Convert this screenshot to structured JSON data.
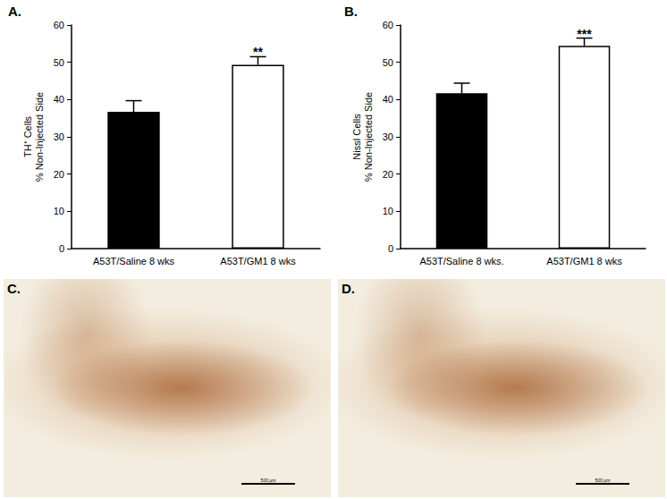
{
  "chart_data": [
    {
      "type": "bar",
      "title": "A.",
      "y_label": "TH⁺ Cells\n% Non-Injected Side",
      "categories": [
        "A53T/Saline 8 wks",
        "A53T/GM1 8 wks"
      ],
      "values": [
        36.7,
        49.3
      ],
      "errors": [
        3.0,
        2.2
      ],
      "colors": [
        "#000000",
        "#ffffff"
      ],
      "ylim": [
        0,
        60
      ],
      "yticks": [
        0,
        10,
        20,
        30,
        40,
        50,
        60
      ],
      "grid": false,
      "significance": [
        null,
        "**"
      ]
    },
    {
      "type": "bar",
      "title": "B.",
      "y_label": "Nissl Cells\n% Non-Injected Side",
      "categories": [
        "A53T/Saline 8 wks.",
        "A53T/GM1 8 wks"
      ],
      "values": [
        41.7,
        54.4
      ],
      "errors": [
        2.7,
        2.1
      ],
      "colors": [
        "#000000",
        "#ffffff"
      ],
      "ylim": [
        0,
        60
      ],
      "yticks": [
        0,
        10,
        20,
        30,
        40,
        50,
        60
      ],
      "grid": false,
      "significance": [
        null,
        "***"
      ]
    }
  ],
  "images": [
    {
      "label": "C.",
      "scale_bar": "500 µm"
    },
    {
      "label": "D.",
      "scale_bar": "500 µm"
    }
  ]
}
